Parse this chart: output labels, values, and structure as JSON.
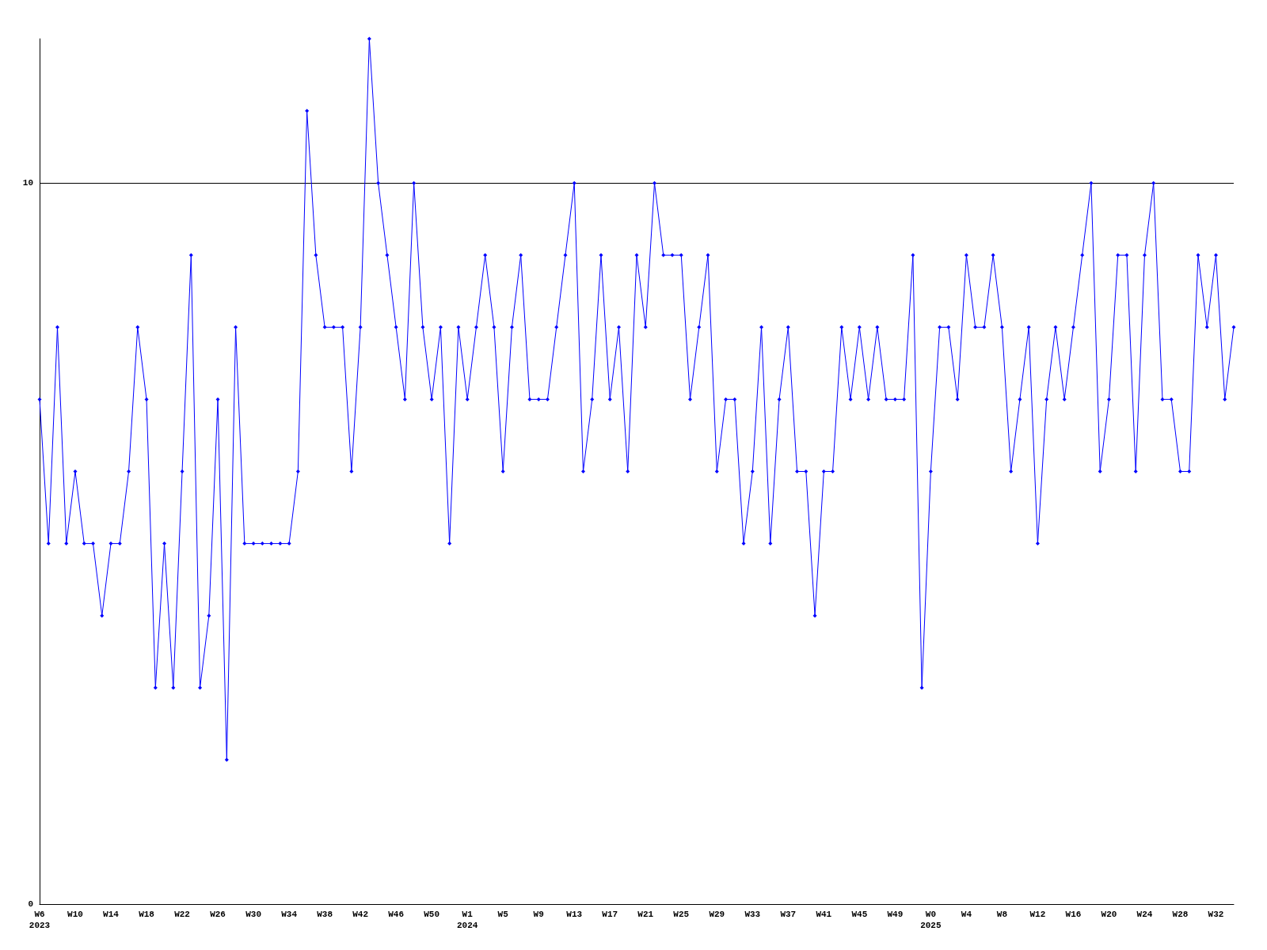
{
  "chart_data": {
    "type": "line",
    "categories": [
      "W6\n2023",
      null,
      null,
      null,
      "W10",
      null,
      null,
      null,
      "W14",
      null,
      null,
      null,
      "W18",
      null,
      null,
      null,
      "W22",
      null,
      null,
      null,
      "W26",
      null,
      null,
      null,
      "W30",
      null,
      null,
      null,
      "W34",
      null,
      null,
      null,
      "W38",
      null,
      null,
      null,
      "W42",
      null,
      null,
      null,
      "W46",
      null,
      null,
      null,
      "W50",
      null,
      null,
      null,
      "W1\n2024",
      null,
      null,
      null,
      "W5",
      null,
      null,
      null,
      "W9",
      null,
      null,
      null,
      "W13",
      null,
      null,
      null,
      "W17",
      null,
      null,
      null,
      "W21",
      null,
      null,
      null,
      "W25",
      null,
      null,
      null,
      "W29",
      null,
      null,
      null,
      "W33",
      null,
      null,
      null,
      "W37",
      null,
      null,
      null,
      "W41",
      null,
      null,
      null,
      "W45",
      null,
      null,
      null,
      "W49",
      null,
      null,
      null,
      "W0\n2025",
      null,
      null,
      null,
      "W4",
      null,
      null,
      null,
      "W8",
      null,
      null,
      null,
      "W12",
      null,
      null,
      null,
      "W16",
      null,
      null,
      null,
      "W20",
      null,
      null,
      null,
      "W24",
      null,
      null,
      null,
      "W28",
      null,
      null,
      null,
      "W32",
      null,
      null
    ],
    "series": [
      {
        "color": "#0000ff",
        "values": [
          7,
          5,
          8,
          5,
          6,
          5,
          5,
          4,
          5,
          5,
          6,
          8,
          7,
          3,
          5,
          3,
          6,
          9,
          3,
          4,
          7,
          2,
          8,
          5,
          5,
          5,
          5,
          5,
          5,
          6,
          11,
          9,
          8,
          8,
          8,
          6,
          8,
          12,
          10,
          9,
          8,
          7,
          10,
          8,
          7,
          8,
          5,
          8,
          7,
          8,
          9,
          8,
          6,
          8,
          9,
          7,
          7,
          7,
          8,
          9,
          10,
          6,
          7,
          9,
          7,
          8,
          6,
          9,
          8,
          10,
          9,
          9,
          9,
          7,
          8,
          9,
          6,
          7,
          7,
          5,
          6,
          8,
          5,
          7,
          8,
          6,
          6,
          4,
          6,
          6,
          8,
          7,
          8,
          7,
          8,
          7,
          7,
          7,
          9,
          3,
          6,
          8,
          8,
          7,
          9,
          8,
          8,
          9,
          8,
          6,
          7,
          8,
          5,
          7,
          8,
          7,
          8,
          9,
          10,
          6,
          7,
          9,
          9,
          6,
          9,
          10,
          7,
          7,
          6,
          6,
          9,
          8,
          9,
          7,
          8
        ]
      }
    ],
    "ylim": [
      0,
      12
    ],
    "yticks": [
      0,
      10
    ],
    "grid": "y",
    "marker": "diamond",
    "line_style": "solid"
  }
}
